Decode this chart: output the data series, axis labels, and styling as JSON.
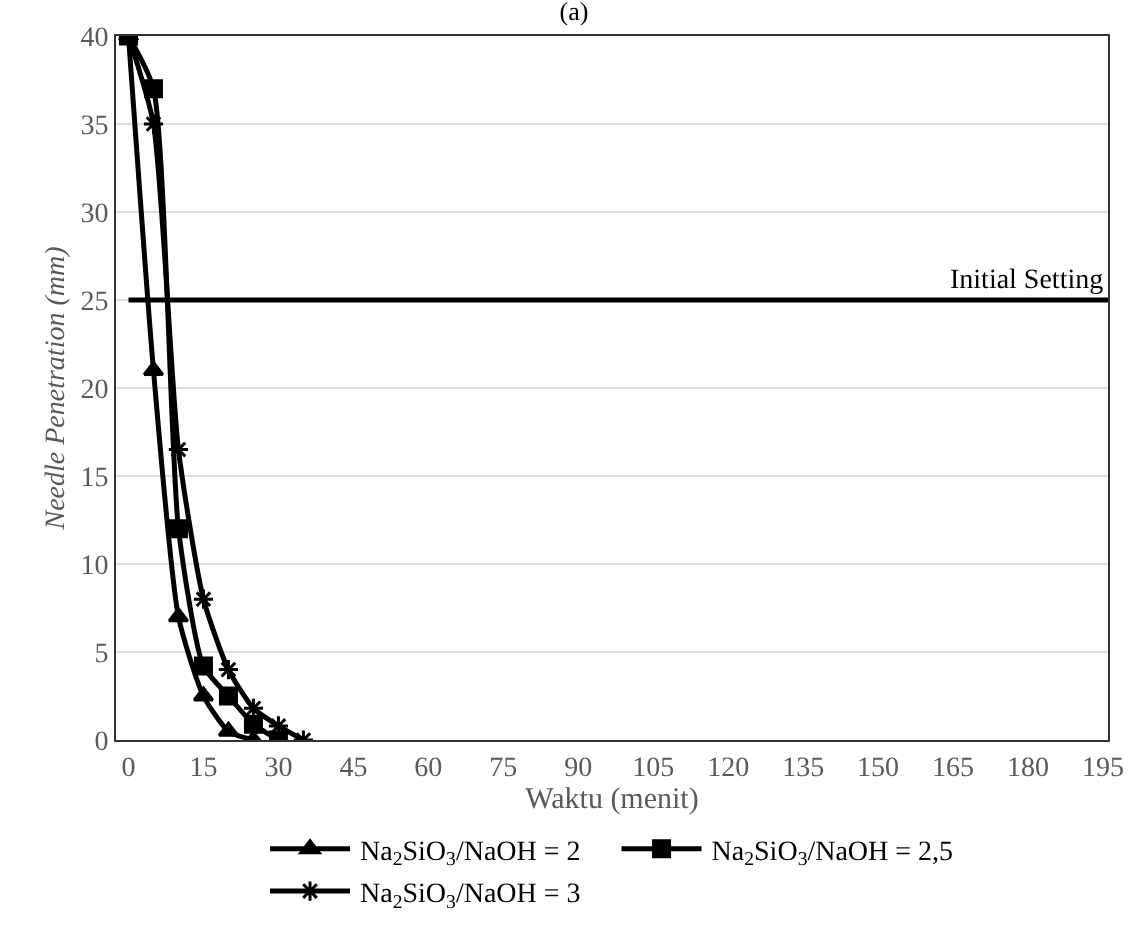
{
  "chart_data": {
    "type": "line",
    "title": "(a)",
    "xlabel": "Waktu (menit)",
    "ylabel": "Needle Penetration (mm)",
    "xlim": [
      -2.5,
      196
    ],
    "xticks": [
      0,
      15,
      30,
      45,
      60,
      75,
      90,
      105,
      120,
      135,
      150,
      165,
      180,
      195
    ],
    "ylim": [
      0,
      40
    ],
    "yticks": [
      0,
      5,
      10,
      15,
      20,
      25,
      30,
      35,
      40
    ],
    "grid": "y",
    "legend": "bottom",
    "line_style": "solid",
    "ref_lines": [
      {
        "axis": "y",
        "value": 25,
        "label": "Initial Setting",
        "color": "#000000"
      }
    ],
    "series": [
      {
        "name": "Na$_{2}$SiO$_{3}$/NaOH = 2",
        "color": "#000000",
        "marker": "triangle",
        "x": [
          0,
          5,
          10,
          15,
          20,
          25
        ],
        "values": [
          40,
          21,
          7,
          2.5,
          0.5,
          0
        ]
      },
      {
        "name": "Na$_{2}$SiO$_{3}$/NaOH = 2,5",
        "color": "#000000",
        "marker": "square",
        "x": [
          0,
          5,
          10,
          15,
          20,
          25,
          30
        ],
        "values": [
          40,
          37,
          12,
          4.2,
          2.5,
          0.9,
          0
        ]
      },
      {
        "name": "Na$_{2}$SiO$_{3}$/NaOH = 3",
        "color": "#000000",
        "marker": "cross",
        "x": [
          0,
          5,
          10,
          15,
          20,
          25,
          30,
          35
        ],
        "values": [
          40,
          35,
          16.5,
          8,
          4,
          1.8,
          0.8,
          0
        ]
      }
    ]
  }
}
